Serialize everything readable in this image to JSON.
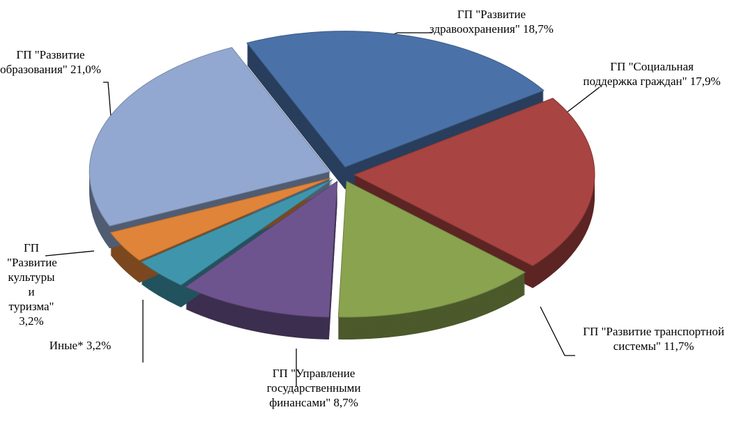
{
  "chart_data": {
    "type": "pie",
    "categories": [
      "ГП \"Развитие здравоохранения\"",
      "ГП \"Социальная поддержка граждан\"",
      "ГП \"Развитие транспортной системы\"",
      "ГП \"Управление государственными финансами\"",
      "ГП \"Развитие культуры и туризма\"",
      "Иные*",
      "ГП \"Развитие образования\""
    ],
    "values": [
      18.7,
      17.9,
      11.7,
      8.7,
      3.2,
      3.2,
      21.0
    ],
    "value_labels": [
      "18,7%",
      "17,9%",
      "11,7%",
      "8,7%",
      "3,2%",
      "3,2%",
      "21,0%"
    ],
    "colors": [
      "#4a72a8",
      "#a84442",
      "#8aa34f",
      "#6e548f",
      "#3f96ac",
      "#e0843a",
      "#93a8d0"
    ]
  }
}
